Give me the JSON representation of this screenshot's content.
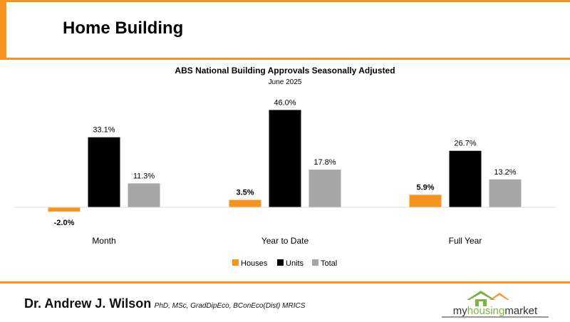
{
  "slide": {
    "title": "Home Building",
    "author_name": "Dr. Andrew J. Wilson",
    "author_credentials": "PhD, MSc, GradDipEco, BConEco(Dist) MRICS",
    "logo": {
      "prefix": "my",
      "middle": "housing",
      "suffix": "market"
    }
  },
  "colors": {
    "accent": "#f7941d",
    "houses": "#f7941d",
    "units": "#000000",
    "total": "#a6a6a6",
    "logo_green": "#7cb342"
  },
  "chart_data": {
    "type": "bar",
    "title": "ABS National Building Approvals Seasonally Adjusted",
    "subtitle": "June 2025",
    "categories": [
      "Month",
      "Year to Date",
      "Full Year"
    ],
    "series": [
      {
        "name": "Houses",
        "values": [
          -2.0,
          3.5,
          5.9
        ],
        "labels": [
          "-2.0%",
          "3.5%",
          "5.9%"
        ]
      },
      {
        "name": "Units",
        "values": [
          33.1,
          46.0,
          26.7
        ],
        "labels": [
          "33.1%",
          "46.0%",
          "26.7%"
        ]
      },
      {
        "name": "Total",
        "values": [
          11.3,
          17.8,
          13.2
        ],
        "labels": [
          "11.3%",
          "17.8%",
          "13.2%"
        ]
      }
    ],
    "legend_position": "bottom",
    "grid": false
  }
}
